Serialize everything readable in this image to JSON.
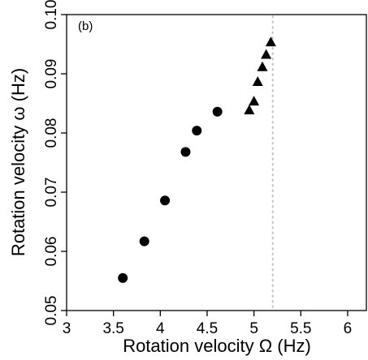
{
  "chart_data": {
    "type": "scatter",
    "panel_label": "(b)",
    "xlabel": "Rotation velocity Ω (Hz)",
    "ylabel": "Rotation velocity ω (Hz)",
    "xlim": [
      3,
      6.2
    ],
    "ylim": [
      0.05,
      0.1
    ],
    "xticks": [
      3,
      3.5,
      4,
      4.5,
      5,
      5.5,
      6
    ],
    "xtick_labels": [
      "3",
      "3.5",
      "4",
      "4.5",
      "5",
      "5.5",
      "6"
    ],
    "yticks": [
      0.05,
      0.06,
      0.07,
      0.08,
      0.09,
      0.1
    ],
    "ytick_labels": [
      "0.05",
      "0.06",
      "0.07",
      "0.08",
      "0.09",
      "0.10"
    ],
    "grid": false,
    "reference_line": {
      "x": 5.2,
      "style": "dotted",
      "color": "#c0c0c0"
    },
    "series": [
      {
        "marker": "circle",
        "color": "#000000",
        "x": [
          3.6,
          3.83,
          4.05,
          4.27,
          4.39,
          4.61
        ],
        "y": [
          0.0555,
          0.0617,
          0.0686,
          0.0768,
          0.0804,
          0.0836
        ]
      },
      {
        "marker": "triangle",
        "color": "#000000",
        "x": [
          4.95,
          5.0,
          5.04,
          5.09,
          5.13,
          5.18
        ],
        "y": [
          0.0838,
          0.0853,
          0.0886,
          0.0911,
          0.0932,
          0.0953
        ]
      }
    ]
  }
}
